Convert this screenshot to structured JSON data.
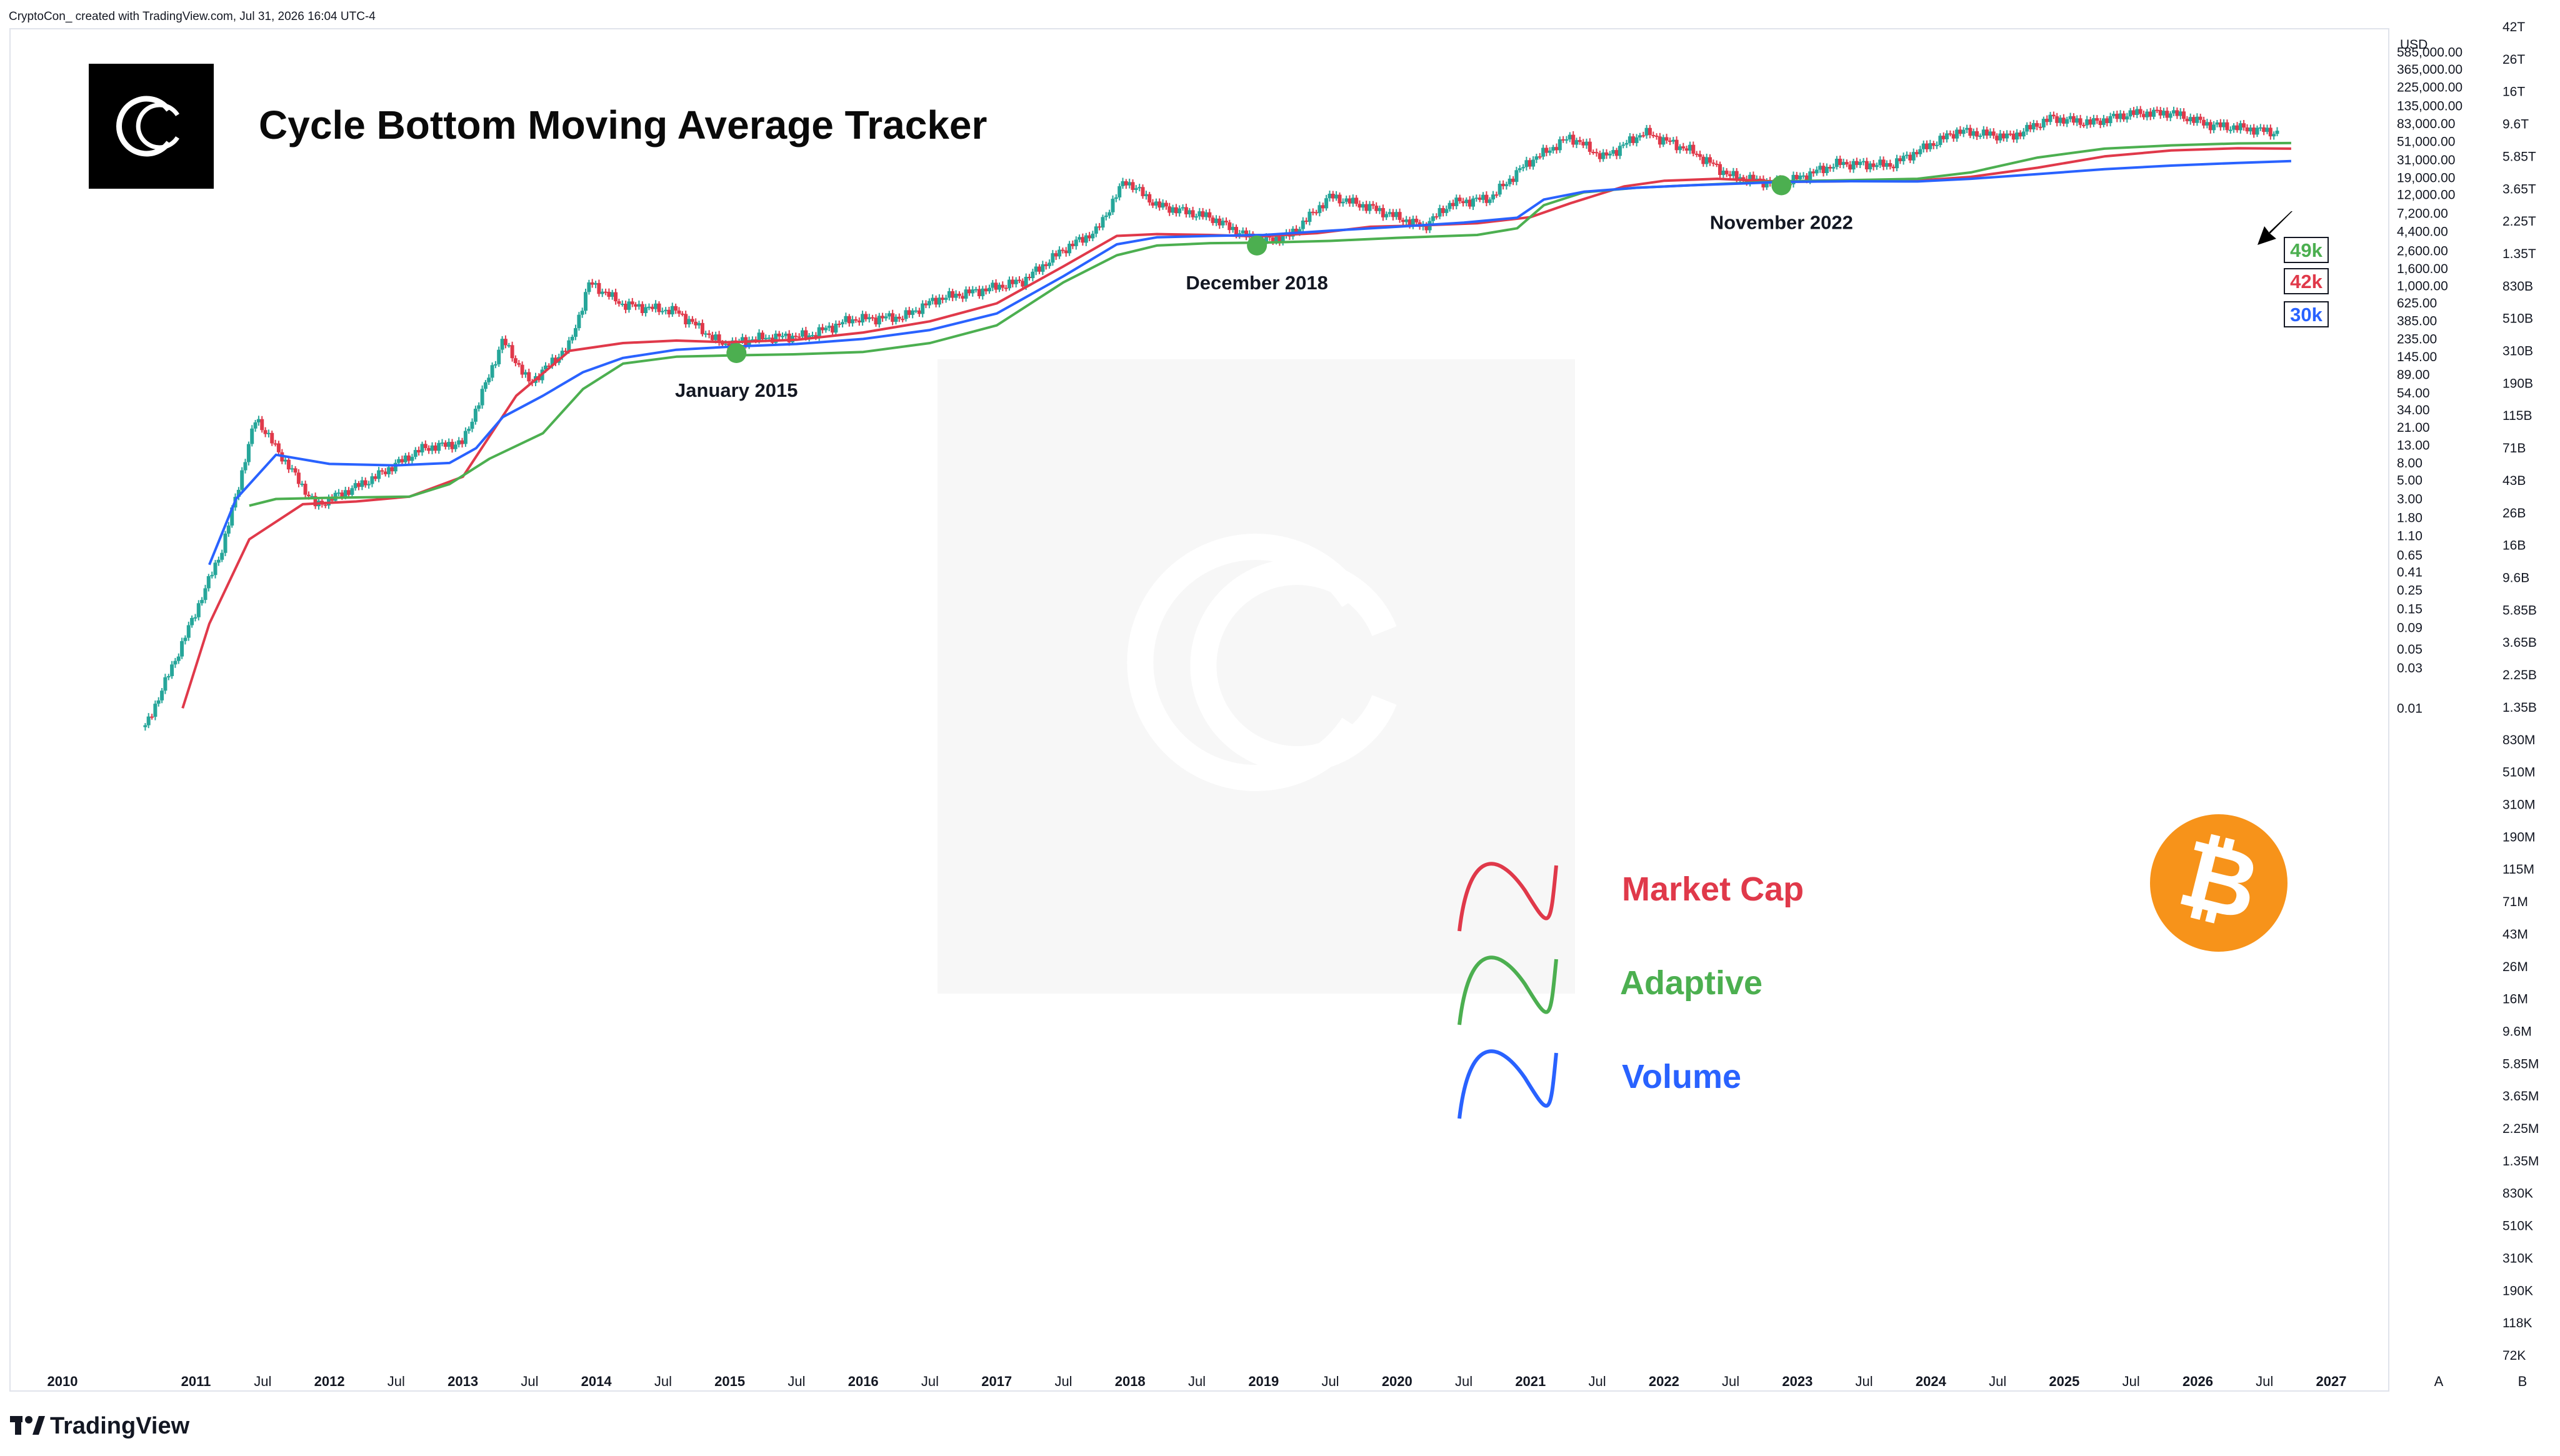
{
  "header": {
    "credit": "CryptoCon_ created with TradingView.com, Jul 31, 2026 16:04 UTC-4",
    "currency": "USD",
    "title": "Cycle Bottom Moving Average Tracker"
  },
  "footer": {
    "brand": "TradingView",
    "scale_auto": "A",
    "scale_mode": "B"
  },
  "colors": {
    "market_cap": "#e0394a",
    "adaptive": "#4caf50",
    "volume": "#2962ff",
    "candle_up": "#26a69a",
    "bitcoin": "#f7931a"
  },
  "icons": [
    "cryptocon-logo-icon",
    "bitcoin-icon",
    "arrow-icon",
    "tradingview-logo-icon"
  ],
  "chart_data": {
    "type": "line",
    "title": "Cycle Bottom Moving Average Tracker",
    "y_scale": "log",
    "x_ticks": [
      "2010",
      "2011",
      "Jul",
      "2012",
      "Jul",
      "2013",
      "Jul",
      "2014",
      "Jul",
      "2015",
      "Jul",
      "2016",
      "Jul",
      "2017",
      "Jul",
      "2018",
      "Jul",
      "2019",
      "Jul",
      "2020",
      "Jul",
      "2021",
      "Jul",
      "2022",
      "Jul",
      "2023",
      "Jul",
      "2024",
      "Jul",
      "2025",
      "Jul",
      "2026",
      "Jul",
      "2027"
    ],
    "y_ticks_price": [
      "585,000.00",
      "365,000.00",
      "225,000.00",
      "135,000.00",
      "83,000.00",
      "51,000.00",
      "31,000.00",
      "19,000.00",
      "12,000.00",
      "7,200.00",
      "4,400.00",
      "2,600.00",
      "1,600.00",
      "1,000.00",
      "625.00",
      "385.00",
      "235.00",
      "145.00",
      "89.00",
      "54.00",
      "34.00",
      "21.00",
      "13.00",
      "8.00",
      "5.00",
      "3.00",
      "1.80",
      "1.10",
      "0.65",
      "0.41",
      "0.25",
      "0.15",
      "0.09",
      "0.05",
      "0.03",
      "0.01"
    ],
    "y_ticks_marketcap": [
      "42T",
      "26T",
      "16T",
      "9.6T",
      "5.85T",
      "3.65T",
      "2.25T",
      "1.35T",
      "830B",
      "510B",
      "310B",
      "190B",
      "115B",
      "71B",
      "43B",
      "26B",
      "16B",
      "9.6B",
      "5.85B",
      "3.65B",
      "2.25B",
      "1.35B",
      "830M",
      "510M",
      "310M",
      "190M",
      "115M",
      "71M",
      "43M",
      "26M",
      "16M",
      "9.6M",
      "5.85M",
      "3.65M",
      "2.25M",
      "1.35M",
      "830K",
      "510K",
      "310K",
      "190K",
      "118K",
      "72K"
    ],
    "series": [
      {
        "name": "Market Cap",
        "last_label": "42k",
        "x": [
          2010.9,
          2011.1,
          2011.4,
          2011.8,
          2012.2,
          2012.6,
          2013.0,
          2013.4,
          2013.8,
          2014.2,
          2014.6,
          2015.0,
          2015.5,
          2016.0,
          2016.5,
          2017.0,
          2017.5,
          2017.9,
          2018.2,
          2018.6,
          2018.95,
          2019.4,
          2019.8,
          2020.2,
          2020.6,
          2021.0,
          2021.3,
          2021.7,
          2022.0,
          2022.4,
          2022.9,
          2023.4,
          2023.9,
          2024.3,
          2024.8,
          2025.3,
          2025.8,
          2026.3,
          2026.7
        ],
        "values": [
          0.01,
          0.1,
          1.0,
          2.6,
          2.8,
          3.2,
          5.5,
          50,
          170,
          210,
          225,
          215,
          230,
          280,
          380,
          620,
          1700,
          3900,
          4100,
          4000,
          3850,
          4200,
          5000,
          5200,
          5500,
          6500,
          9500,
          15000,
          17500,
          18500,
          17000,
          17300,
          17600,
          19500,
          25000,
          34000,
          40000,
          42500,
          42000
        ]
      },
      {
        "name": "Adaptive",
        "last_label": "49k",
        "x": [
          2011.4,
          2011.6,
          2012.0,
          2012.6,
          2012.9,
          2013.2,
          2013.6,
          2013.9,
          2014.2,
          2014.6,
          2015.0,
          2015.5,
          2016.0,
          2016.5,
          2017.0,
          2017.5,
          2017.9,
          2018.2,
          2018.6,
          2019.0,
          2019.5,
          2020.0,
          2020.6,
          2020.9,
          2021.1,
          2021.4,
          2021.8,
          2022.2,
          2022.6,
          2022.9,
          2023.4,
          2023.9,
          2024.3,
          2024.8,
          2025.3,
          2025.8,
          2026.3,
          2026.7
        ],
        "values": [
          2.5,
          3.0,
          3.1,
          3.2,
          4.5,
          9,
          18,
          60,
          120,
          145,
          150,
          155,
          165,
          210,
          340,
          1100,
          2300,
          3000,
          3200,
          3250,
          3400,
          3700,
          4000,
          4800,
          9000,
          12800,
          14500,
          15500,
          16500,
          17300,
          17800,
          18500,
          22000,
          33000,
          42000,
          46000,
          48500,
          49000
        ]
      },
      {
        "name": "Volume",
        "last_label": "30k",
        "x": [
          2011.1,
          2011.3,
          2011.6,
          2012.0,
          2012.5,
          2012.9,
          2013.1,
          2013.3,
          2013.6,
          2013.9,
          2014.2,
          2014.6,
          2015.0,
          2015.5,
          2016.0,
          2016.5,
          2017.0,
          2017.5,
          2017.9,
          2018.2,
          2018.6,
          2019.0,
          2019.5,
          2020.0,
          2020.5,
          2020.9,
          2021.1,
          2021.4,
          2021.8,
          2022.2,
          2022.6,
          2022.9,
          2023.4,
          2023.9,
          2024.3,
          2024.8,
          2025.3,
          2025.8,
          2026.3,
          2026.7
        ],
        "values": [
          0.5,
          3.0,
          10,
          7.8,
          7.5,
          8.0,
          12,
          28,
          50,
          95,
          140,
          175,
          190,
          205,
          235,
          300,
          470,
          1300,
          3100,
          3750,
          3900,
          4000,
          4500,
          5000,
          5600,
          6400,
          10500,
          13000,
          14500,
          15500,
          16300,
          17000,
          17300,
          17200,
          18500,
          21000,
          24000,
          26500,
          28500,
          30000
        ]
      }
    ],
    "annotations": [
      {
        "label": "January 2015",
        "x": 2015.05,
        "y": 160
      },
      {
        "label": "December 2018",
        "x": 2018.95,
        "y": 3000
      },
      {
        "label": "November 2022",
        "x": 2022.88,
        "y": 15500
      }
    ],
    "legend": [
      "Market Cap",
      "Adaptive",
      "Volume"
    ],
    "legend_position": "center-right",
    "grid": false
  }
}
